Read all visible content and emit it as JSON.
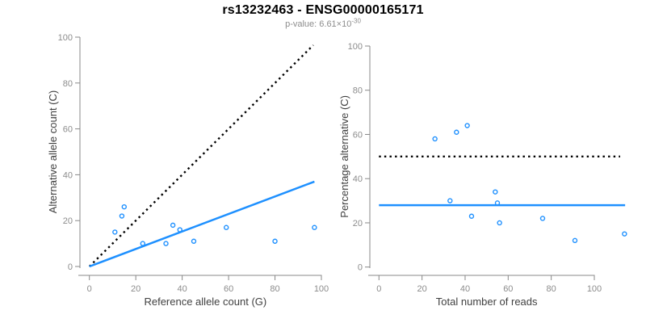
{
  "header": {
    "title": "rs13232463 - ENSG00000165171",
    "subtitle_prefix": "p-value: 6.61×10",
    "subtitle_exponent": "-30"
  },
  "colors": {
    "accent_blue": "#1E90FF",
    "reference_black": "#000000",
    "axis_gray": "#888888",
    "tick_label_gray": "#8c8c8c",
    "axis_title_gray": "#404040",
    "background": "#ffffff"
  },
  "chart_data": [
    {
      "type": "scatter",
      "panel": "left",
      "xlabel": "Reference allele count (G)",
      "ylabel": "Alternative allele count (C)",
      "xlim": [
        0,
        100
      ],
      "ylim": [
        0,
        100
      ],
      "xticks": [
        0,
        20,
        40,
        60,
        80,
        100
      ],
      "yticks": [
        0,
        20,
        40,
        60,
        80,
        100
      ],
      "grid": false,
      "marker": "open-circle",
      "points": [
        [
          11,
          15
        ],
        [
          14,
          22
        ],
        [
          15,
          26
        ],
        [
          23,
          10
        ],
        [
          33,
          10
        ],
        [
          36,
          18
        ],
        [
          39,
          16
        ],
        [
          45,
          11
        ],
        [
          59,
          17
        ],
        [
          80,
          11
        ],
        [
          97,
          17
        ]
      ],
      "lines": [
        {
          "name": "identity-reference-line",
          "style": "dotted",
          "color": "#000000",
          "from": [
            0,
            0
          ],
          "to": [
            96.5,
            96.5
          ]
        },
        {
          "name": "regression-fit-line",
          "style": "solid",
          "color": "#1E90FF",
          "from": [
            0,
            0
          ],
          "to": [
            97,
            37
          ]
        }
      ]
    },
    {
      "type": "scatter",
      "panel": "right",
      "xlabel": "Total number of reads",
      "ylabel": "Percentage alternative (C)",
      "xlim": [
        0,
        115
      ],
      "ylim": [
        0,
        100
      ],
      "xticks": [
        0,
        20,
        40,
        60,
        80,
        100
      ],
      "yticks": [
        0,
        20,
        40,
        60,
        80,
        100
      ],
      "grid": false,
      "marker": "open-circle",
      "points": [
        [
          26,
          58
        ],
        [
          33,
          30
        ],
        [
          36,
          61
        ],
        [
          41,
          64
        ],
        [
          43,
          23
        ],
        [
          54,
          34
        ],
        [
          55,
          29
        ],
        [
          56,
          20
        ],
        [
          76,
          22
        ],
        [
          91,
          12
        ],
        [
          114,
          15
        ]
      ],
      "lines": [
        {
          "name": "fifty-percent-reference-line",
          "style": "dotted",
          "color": "#000000",
          "from": [
            0,
            50
          ],
          "to": [
            112,
            50
          ]
        },
        {
          "name": "mean-percentage-line",
          "style": "solid",
          "color": "#1E90FF",
          "from": [
            0,
            28
          ],
          "to": [
            114.3,
            28
          ]
        }
      ]
    }
  ]
}
